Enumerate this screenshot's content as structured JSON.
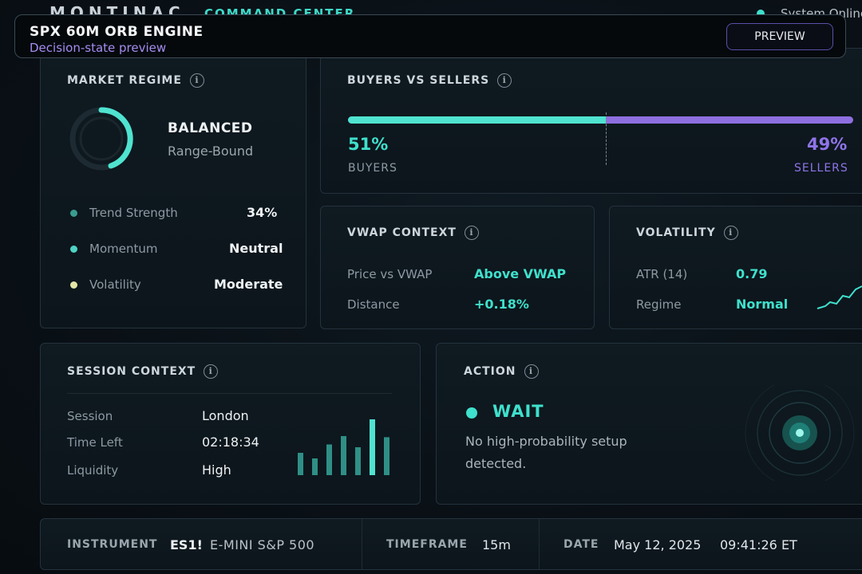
{
  "header": {
    "brand": "MONTINAC",
    "subtitle": "COMMAND CENTER",
    "status": "System Online"
  },
  "overlay": {
    "title": "SPX 60M ORB ENGINE",
    "subtitle": "Decision-state preview",
    "button": "PREVIEW"
  },
  "market_regime": {
    "title": "MARKET REGIME",
    "state": "BALANCED",
    "substate": "Range-Bound",
    "rows": [
      {
        "label": "Trend Strength",
        "value": "34%",
        "color": "#3a9c8e"
      },
      {
        "label": "Momentum",
        "value": "Neutral",
        "color": "#4fd3c4"
      },
      {
        "label": "Volatility",
        "value": "Moderate",
        "color": "#e3e6a6"
      }
    ]
  },
  "buyers_sellers": {
    "title": "BUYERS VS SELLERS",
    "buyers_pct": "51%",
    "buyers_label": "BUYERS",
    "sellers_pct": "49%",
    "sellers_label": "SELLERS",
    "buyers_fraction": 0.51,
    "colors": {
      "buyers": "#4fe3d0",
      "sellers": "#8e6fe0"
    }
  },
  "vwap": {
    "title": "VWAP CONTEXT",
    "rows": [
      {
        "label": "Price vs VWAP",
        "value": "Above VWAP"
      },
      {
        "label": "Distance",
        "value": "+0.18%"
      }
    ]
  },
  "volatility": {
    "title": "VOLATILITY",
    "rows": [
      {
        "label": "ATR (14)",
        "value": "0.79"
      },
      {
        "label": "Regime",
        "value": "Normal"
      }
    ]
  },
  "session": {
    "title": "SESSION CONTEXT",
    "rows": [
      {
        "label": "Session",
        "value": "London"
      },
      {
        "label": "Time Left",
        "value": "02:18:34"
      },
      {
        "label": "Liquidity",
        "value": "High"
      }
    ],
    "bars": [
      0.4,
      0.3,
      0.55,
      0.7,
      0.5,
      1.0,
      0.68
    ]
  },
  "action": {
    "title": "ACTION",
    "state": "WAIT",
    "message_line1": "No high-probability setup",
    "message_line2": "detected."
  },
  "footer": {
    "instrument_label": "INSTRUMENT",
    "instrument_symbol": "ES1!",
    "instrument_name": "E-MINI S&P 500",
    "timeframe_label": "TIMEFRAME",
    "timeframe_value": "15m",
    "date_label": "DATE",
    "date_value": "May 12, 2025",
    "time_value": "09:41:26 ET"
  },
  "colors": {
    "accent": "#3fe0cc",
    "purple": "#8f74ea",
    "background": "#0a1117"
  }
}
